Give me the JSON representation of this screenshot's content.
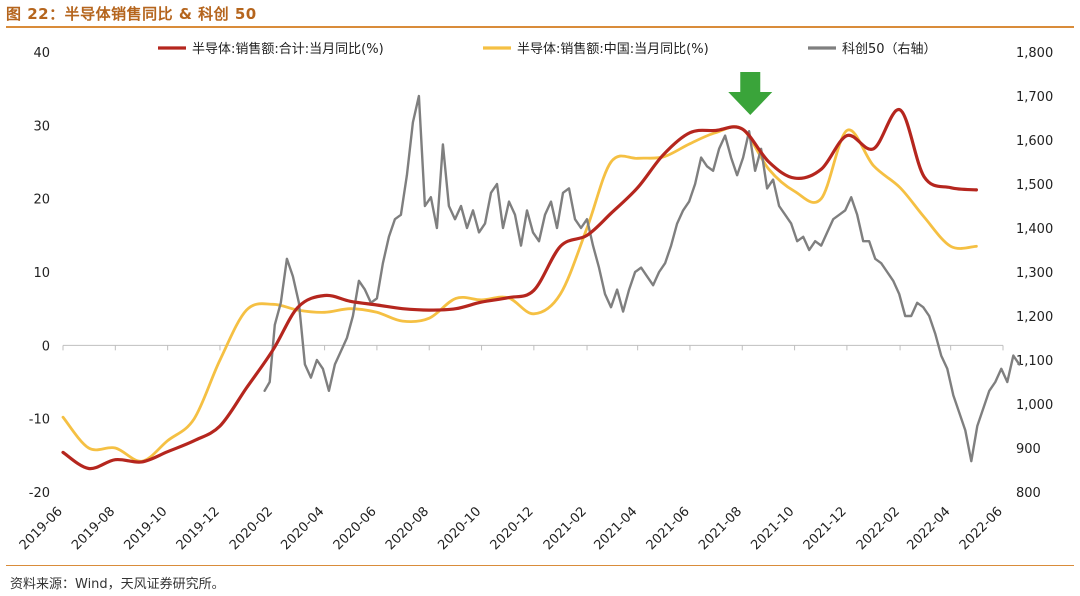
{
  "figure": {
    "title": "图 22：半导体销售同比  &  科创 50",
    "source": "资料来源：Wind，天风证券研究所。"
  },
  "colors": {
    "series_total": "#b5261e",
    "series_china": "#f5c043",
    "series_kc50": "#7f7f7f",
    "arrow": "#3aa43a",
    "accent_rule": "#d98c3a"
  },
  "chart_data": {
    "type": "line",
    "title": "",
    "xlabel": "",
    "ylabel": "",
    "grid": false,
    "legend_position": "top",
    "x_ticks": [
      "2019-06",
      "2019-08",
      "2019-10",
      "2019-12",
      "2020-02",
      "2020-04",
      "2020-06",
      "2020-08",
      "2020-10",
      "2020-12",
      "2021-02",
      "2021-04",
      "2021-06",
      "2021-08",
      "2021-10",
      "2021-12",
      "2022-02",
      "2022-04",
      "2022-06"
    ],
    "y_left": {
      "ticks": [
        "40",
        "30",
        "20",
        "10",
        "0",
        "-10",
        "-20"
      ],
      "range": [
        -20,
        40
      ]
    },
    "y_right": {
      "ticks": [
        "1,800",
        "1,700",
        "1,600",
        "1,500",
        "1,400",
        "1,300",
        "1,200",
        "1,100",
        "1,000",
        "900",
        "800"
      ],
      "range": [
        800,
        1800
      ]
    },
    "annotation": {
      "type": "arrow-down",
      "month": "2021-08",
      "icon": "arrow-down-icon"
    },
    "series": [
      {
        "name": "半导体:销售额:合计:当月同比(%)",
        "axis": "left",
        "x": [
          "2019-06",
          "2019-07",
          "2019-08",
          "2019-09",
          "2019-10",
          "2019-11",
          "2019-12",
          "2020-01",
          "2020-02",
          "2020-03",
          "2020-04",
          "2020-05",
          "2020-06",
          "2020-07",
          "2020-08",
          "2020-09",
          "2020-10",
          "2020-11",
          "2020-12",
          "2021-01",
          "2021-02",
          "2021-03",
          "2021-04",
          "2021-05",
          "2021-06",
          "2021-07",
          "2021-08",
          "2021-09",
          "2021-10",
          "2021-11",
          "2021-12",
          "2022-01",
          "2022-02",
          "2022-03",
          "2022-04",
          "2022-05"
        ],
        "values": [
          -14.6,
          -16.8,
          -15.6,
          -15.9,
          -14.5,
          -13,
          -11,
          -5.8,
          -0.6,
          5.2,
          6.8,
          6,
          5.5,
          5,
          4.8,
          5,
          5.9,
          6.5,
          7.5,
          13.5,
          15,
          18,
          21.5,
          26,
          29,
          29.3,
          29.5,
          25,
          22.8,
          24,
          28.6,
          26.8,
          32.1,
          23,
          21.5,
          21.2
        ]
      },
      {
        "name": "半导体:销售额:中国:当月同比(%)",
        "axis": "left",
        "x": [
          "2019-06",
          "2019-07",
          "2019-08",
          "2019-09",
          "2019-10",
          "2019-11",
          "2019-12",
          "2020-01",
          "2020-02",
          "2020-03",
          "2020-04",
          "2020-05",
          "2020-06",
          "2020-07",
          "2020-08",
          "2020-09",
          "2020-10",
          "2020-11",
          "2020-12",
          "2021-01",
          "2021-02",
          "2021-03",
          "2021-04",
          "2021-05",
          "2021-06",
          "2021-07",
          "2021-08",
          "2021-09",
          "2021-10",
          "2021-11",
          "2021-12",
          "2022-01",
          "2022-02",
          "2022-03",
          "2022-04",
          "2022-05"
        ],
        "values": [
          -9.8,
          -14,
          -14,
          -15.8,
          -13,
          -10,
          -2,
          4.8,
          5.6,
          4.8,
          4.5,
          5,
          4.5,
          3.3,
          3.7,
          6.4,
          6.2,
          6.5,
          4.3,
          7,
          16,
          25,
          25.5,
          25.7,
          27.5,
          29,
          29.5,
          24,
          21,
          20,
          29.3,
          24.5,
          21.5,
          17.5,
          13.5,
          13.5
        ]
      },
      {
        "name": "科创50（右轴）",
        "axis": "right",
        "x": [
          "2020-01-22",
          "2020-01-28",
          "2020-02-03",
          "2020-02-10",
          "2020-02-17",
          "2020-02-24",
          "2020-03-02",
          "2020-03-09",
          "2020-03-16",
          "2020-03-23",
          "2020-03-30",
          "2020-04-06",
          "2020-04-13",
          "2020-04-20",
          "2020-04-27",
          "2020-05-04",
          "2020-05-11",
          "2020-05-18",
          "2020-05-25",
          "2020-06-01",
          "2020-06-08",
          "2020-06-15",
          "2020-06-22",
          "2020-06-29",
          "2020-07-06",
          "2020-07-13",
          "2020-07-20",
          "2020-07-27",
          "2020-08-03",
          "2020-08-10",
          "2020-08-17",
          "2020-08-24",
          "2020-08-31",
          "2020-09-07",
          "2020-09-14",
          "2020-09-21",
          "2020-09-28",
          "2020-10-05",
          "2020-10-12",
          "2020-10-19",
          "2020-10-26",
          "2020-11-02",
          "2020-11-09",
          "2020-11-16",
          "2020-11-23",
          "2020-11-30",
          "2020-12-07",
          "2020-12-14",
          "2020-12-21",
          "2020-12-28",
          "2021-01-04",
          "2021-01-11",
          "2021-01-18",
          "2021-01-25",
          "2021-02-01",
          "2021-02-08",
          "2021-02-15",
          "2021-02-22",
          "2021-03-01",
          "2021-03-08",
          "2021-03-15",
          "2021-03-22",
          "2021-03-29",
          "2021-04-05",
          "2021-04-12",
          "2021-04-19",
          "2021-04-26",
          "2021-05-03",
          "2021-05-10",
          "2021-05-17",
          "2021-05-24",
          "2021-05-31",
          "2021-06-07",
          "2021-06-14",
          "2021-06-21",
          "2021-06-28",
          "2021-07-05",
          "2021-07-12",
          "2021-07-19",
          "2021-07-26",
          "2021-08-02",
          "2021-08-09",
          "2021-08-16",
          "2021-08-23",
          "2021-08-30",
          "2021-09-06",
          "2021-09-13",
          "2021-09-20",
          "2021-09-27",
          "2021-10-04",
          "2021-10-11",
          "2021-10-18",
          "2021-10-25",
          "2021-11-01",
          "2021-11-08",
          "2021-11-15",
          "2021-11-22",
          "2021-11-29",
          "2021-12-06",
          "2021-12-13",
          "2021-12-20",
          "2021-12-27",
          "2022-01-03",
          "2022-01-10",
          "2022-01-17",
          "2022-01-24",
          "2022-01-31",
          "2022-02-07",
          "2022-02-14",
          "2022-02-21",
          "2022-02-28",
          "2022-03-07",
          "2022-03-14",
          "2022-03-21",
          "2022-03-28",
          "2022-04-04",
          "2022-04-11",
          "2022-04-18",
          "2022-04-25",
          "2022-05-02",
          "2022-05-09",
          "2022-05-16",
          "2022-05-23",
          "2022-05-30",
          "2022-06-06",
          "2022-06-13",
          "2022-06-20"
        ],
        "values": [
          1030,
          1050,
          1180,
          1230,
          1330,
          1290,
          1230,
          1090,
          1060,
          1100,
          1080,
          1030,
          1090,
          1120,
          1150,
          1200,
          1280,
          1260,
          1230,
          1240,
          1320,
          1380,
          1420,
          1430,
          1520,
          1640,
          1700,
          1450,
          1470,
          1400,
          1590,
          1450,
          1420,
          1450,
          1400,
          1440,
          1390,
          1410,
          1480,
          1500,
          1400,
          1460,
          1430,
          1360,
          1440,
          1390,
          1370,
          1430,
          1460,
          1400,
          1480,
          1490,
          1420,
          1400,
          1420,
          1360,
          1310,
          1250,
          1220,
          1260,
          1210,
          1260,
          1300,
          1310,
          1290,
          1270,
          1300,
          1320,
          1360,
          1410,
          1440,
          1460,
          1500,
          1560,
          1540,
          1530,
          1580,
          1610,
          1560,
          1520,
          1560,
          1620,
          1530,
          1580,
          1490,
          1510,
          1450,
          1430,
          1410,
          1370,
          1380,
          1350,
          1370,
          1360,
          1390,
          1420,
          1430,
          1440,
          1470,
          1430,
          1370,
          1370,
          1330,
          1320,
          1300,
          1280,
          1250,
          1200,
          1200,
          1230,
          1220,
          1200,
          1160,
          1110,
          1080,
          1020,
          980,
          940,
          870,
          950,
          990,
          1030,
          1050,
          1080,
          1050,
          1110,
          1090
        ]
      }
    ]
  }
}
